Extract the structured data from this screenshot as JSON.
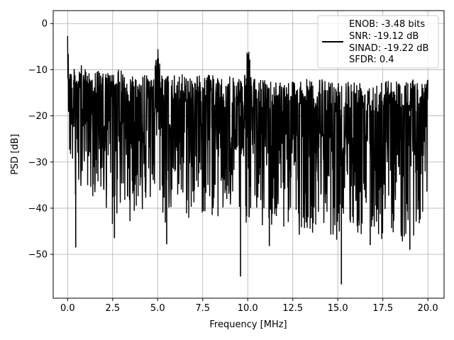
{
  "chart_data": {
    "type": "line",
    "title": "",
    "xlabel": "Frequency [MHz]",
    "ylabel": "PSD [dB]",
    "xlim": [
      -0.8,
      20.9
    ],
    "ylim": [
      -59.5,
      2.8
    ],
    "grid": true,
    "legend_position": "top-right",
    "line_color": "#000000",
    "xticks": [
      0.0,
      2.5,
      5.0,
      7.5,
      10.0,
      12.5,
      15.0,
      17.5,
      20.0
    ],
    "xtick_labels": [
      "0.0",
      "2.5",
      "5.0",
      "7.5",
      "10.0",
      "12.5",
      "15.0",
      "17.5",
      "20.0"
    ],
    "yticks": [
      0,
      -10,
      -20,
      -30,
      -40,
      -50
    ],
    "ytick_labels": [
      "0",
      "−10",
      "−20",
      "−30",
      "−40",
      "−50"
    ],
    "legend_lines": [
      "ENOB: -3.48 bits",
      "SNR: -19.12 dB",
      "SINAD: -19.22 dB",
      "SFDR: 0.4"
    ],
    "series": [
      {
        "x": [
          0.0,
          0.02,
          0.05,
          0.08,
          0.12,
          0.2,
          0.3,
          0.4,
          0.5,
          0.6,
          0.8,
          1.0,
          1.2,
          1.5,
          1.8,
          2.0,
          2.3,
          2.5,
          2.6,
          2.8,
          3.0,
          3.2,
          3.5,
          3.8,
          4.0,
          4.2,
          4.5,
          4.8,
          5.0,
          5.2,
          5.5,
          5.6,
          5.8,
          6.0,
          6.3,
          6.5,
          6.8,
          7.0,
          7.3,
          7.5,
          7.7,
          7.8,
          8.0,
          8.3,
          8.5,
          8.8,
          9.0,
          9.3,
          9.6,
          9.8,
          10.0,
          10.2,
          10.5,
          10.8,
          11.0,
          11.2,
          11.5,
          11.8,
          12.0,
          12.3,
          12.5,
          12.8,
          13.0,
          13.3,
          13.5,
          13.8,
          14.0,
          14.3,
          14.6,
          14.8,
          15.0,
          15.2,
          15.5,
          15.8,
          16.0,
          16.3,
          16.5,
          16.8,
          17.0,
          17.3,
          17.5,
          17.8,
          18.0,
          18.3,
          18.5,
          18.8,
          19.0,
          19.2,
          19.5,
          19.8,
          20.0
        ],
        "upper": [
          0,
          -2,
          -5,
          -7,
          -9,
          -9.5,
          -10,
          -9.5,
          -10,
          -9,
          -9,
          -10,
          -10,
          -10,
          -10,
          -11,
          -10,
          -11,
          -10,
          -10,
          -10,
          -11,
          -11,
          -10,
          -11,
          -11,
          -11,
          -10,
          -5,
          -11,
          -11,
          -11,
          -11,
          -11,
          -11,
          -11,
          -11,
          -11,
          -11,
          -11,
          -12,
          -11,
          -11,
          -11,
          -12,
          -12,
          -11,
          -12,
          -12,
          -12,
          -2,
          -12,
          -12,
          -12,
          -12,
          -12,
          -12,
          -12,
          -12,
          -12,
          -12,
          -12,
          -12,
          -12,
          -12,
          -12,
          -12,
          -12,
          -12,
          -12,
          -12,
          -12,
          -12,
          -12,
          -12,
          -12,
          -12,
          -12,
          -12,
          -12,
          -12,
          -12,
          -12,
          -12,
          -12,
          -12,
          -12,
          -12,
          -12,
          -12,
          -12
        ],
        "lower": [
          -6,
          -15,
          -22,
          -34,
          -30,
          -32,
          -33,
          -48,
          -32,
          -38,
          -34,
          -34,
          -37,
          -38,
          -36,
          -41,
          -40,
          -46,
          -41,
          -43,
          -40,
          -42,
          -43,
          -41,
          -39,
          -42,
          -40,
          -38,
          -38,
          -40,
          -48,
          -41,
          -42,
          -41,
          -43,
          -41,
          -45,
          -42,
          -41,
          -42,
          -44,
          -41,
          -42,
          -43,
          -43,
          -44,
          -42,
          -43,
          -44,
          -43,
          -44,
          -42,
          -42,
          -46,
          -43,
          -44,
          -48,
          -43,
          -46,
          -44,
          -44,
          -47,
          -44,
          -45,
          -45,
          -46,
          -44,
          -45,
          -46,
          -47,
          -47,
          -45,
          -45,
          -47,
          -46,
          -47,
          -45,
          -48,
          -46,
          -47,
          -48,
          -47,
          -45,
          -47,
          -48,
          -49,
          -47,
          -46,
          -47,
          -48,
          -37
        ]
      }
    ],
    "spikes": [
      {
        "x": 0.45,
        "y": -48.5
      },
      {
        "x": 2.6,
        "y": -46.5
      },
      {
        "x": 5.5,
        "y": -47.8
      },
      {
        "x": 9.6,
        "y": -54.8
      },
      {
        "x": 11.2,
        "y": -48.2
      },
      {
        "x": 15.2,
        "y": -56.5
      },
      {
        "x": 16.8,
        "y": -48.0
      },
      {
        "x": 19.0,
        "y": -49.0
      }
    ]
  }
}
